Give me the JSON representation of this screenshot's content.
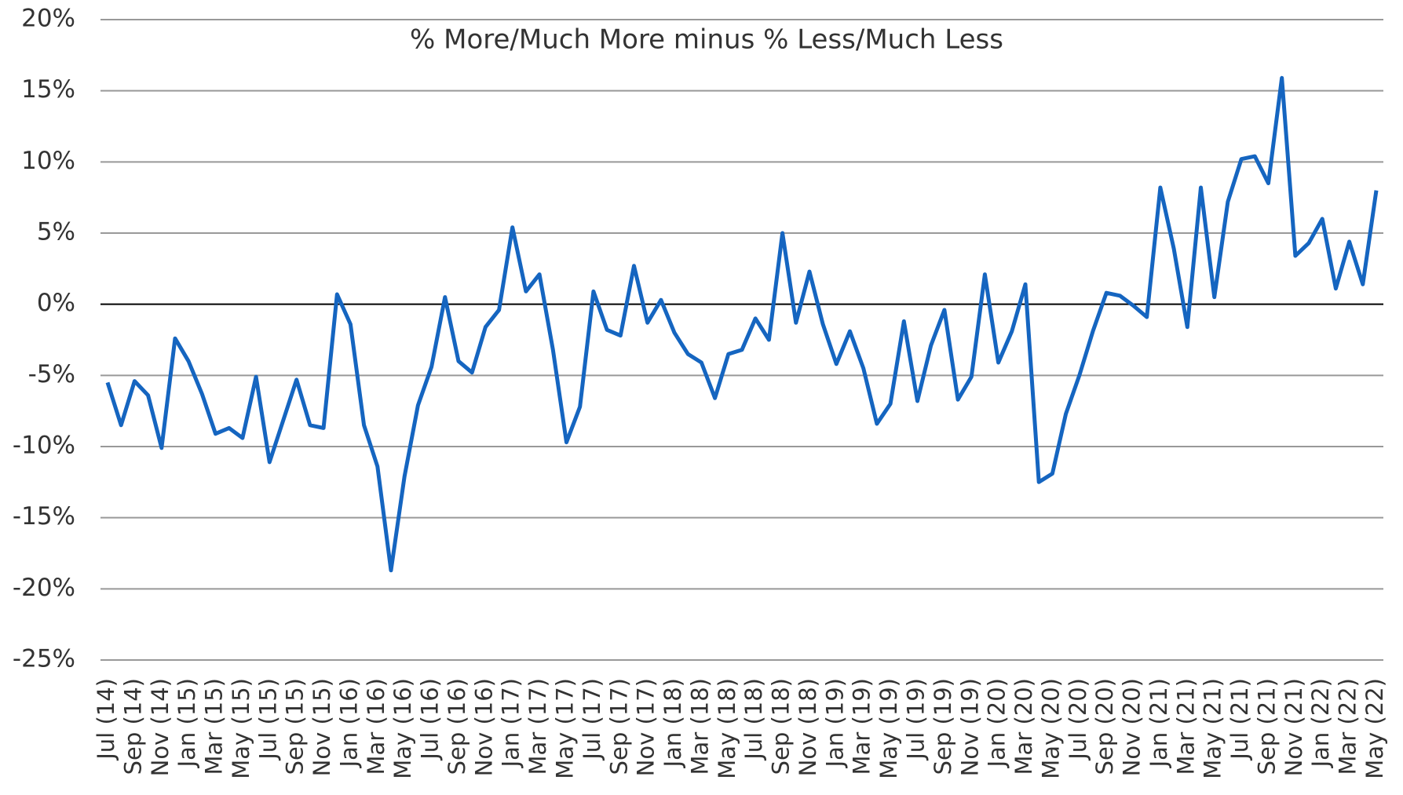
{
  "chart_data": {
    "type": "line",
    "title": "% More/Much More minus % Less/Much Less",
    "categories": [
      "Jul (14)",
      null,
      "Sep (14)",
      null,
      "Nov (14)",
      null,
      "Jan (15)",
      null,
      "Mar (15)",
      null,
      "May (15)",
      null,
      "Jul (15)",
      null,
      "Sep (15)",
      null,
      "Nov (15)",
      null,
      "Jan (16)",
      null,
      "Mar (16)",
      null,
      "May (16)",
      null,
      "Jul (16)",
      null,
      "Sep (16)",
      null,
      "Nov (16)",
      null,
      "Jan (17)",
      null,
      "Mar (17)",
      null,
      "May (17)",
      null,
      "Jul (17)",
      null,
      "Sep (17)",
      null,
      "Nov (17)",
      null,
      "Jan (18)",
      null,
      "Mar (18)",
      null,
      "May (18)",
      null,
      "Jul (18)",
      null,
      "Sep (18)",
      null,
      "Nov (18)",
      null,
      "Jan (19)",
      null,
      "Mar (19)",
      null,
      "May (19)",
      null,
      "Jul (19)",
      null,
      "Sep (19)",
      null,
      "Nov (19)",
      null,
      "Jan (20)",
      null,
      "Mar (20)",
      null,
      "May (20)",
      null,
      "Jul (20)",
      null,
      "Sep (20)",
      null,
      "Nov (20)",
      null,
      "Jan (21)",
      null,
      "Mar (21)",
      null,
      "May (21)",
      null,
      "Jul (21)",
      null,
      "Sep (21)",
      null,
      "Nov (21)",
      null,
      "Jan (22)",
      null,
      "Mar (22)",
      null,
      "May (22)"
    ],
    "series": [
      {
        "name": "% More/Much More minus % Less/Much Less",
        "color": "#1565c0",
        "values": [
          -5.5,
          -8.5,
          -5.4,
          -6.4,
          -10.1,
          -2.4,
          -4,
          -6.3,
          -9.1,
          -8.7,
          -9.4,
          -5.1,
          -11.1,
          -8.2,
          -5.3,
          -8.5,
          -8.7,
          0.7,
          -1.4,
          -8.5,
          -11.4,
          -18.7,
          -12.1,
          -7.1,
          -4.4,
          0.5,
          -4,
          -4.8,
          -1.6,
          -0.4,
          5.4,
          0.9,
          2.1,
          -3.2,
          -9.7,
          -7.2,
          0.9,
          -1.8,
          -2.2,
          2.7,
          -1.3,
          0.3,
          -2.0,
          -3.5,
          -4.1,
          -6.6,
          -3.5,
          -3.2,
          -1.0,
          -2.5,
          5.0,
          -1.3,
          2.3,
          -1.4,
          -4.2,
          -1.9,
          -4.5,
          -8.4,
          -7.0,
          -1.2,
          -6.8,
          -2.9,
          -0.4,
          -6.7,
          -5.1,
          2.1,
          -4.1,
          -1.9,
          1.4,
          -12.5,
          -11.9,
          -7.7,
          -5.0,
          -1.9,
          0.8,
          0.6,
          -0.1,
          -0.9,
          8.2,
          3.9,
          -1.6,
          8.2,
          0.5,
          7.2,
          10.2,
          10.4,
          8.5,
          15.9,
          3.4,
          4.3,
          6.0,
          1.1,
          4.4,
          1.4,
          8.0
        ]
      }
    ],
    "ylim": [
      -25,
      20
    ],
    "yticks": [
      {
        "value": -25,
        "label": "-25%"
      },
      {
        "value": -20,
        "label": "-20%"
      },
      {
        "value": -15,
        "label": "-15%"
      },
      {
        "value": -10,
        "label": "-10%"
      },
      {
        "value": -5,
        "label": "-5%"
      },
      {
        "value": 0,
        "label": "0%"
      },
      {
        "value": 5,
        "label": "5%"
      },
      {
        "value": 10,
        "label": "10%"
      },
      {
        "value": 15,
        "label": "15%"
      },
      {
        "value": 20,
        "label": "20%"
      }
    ],
    "grid": true
  }
}
